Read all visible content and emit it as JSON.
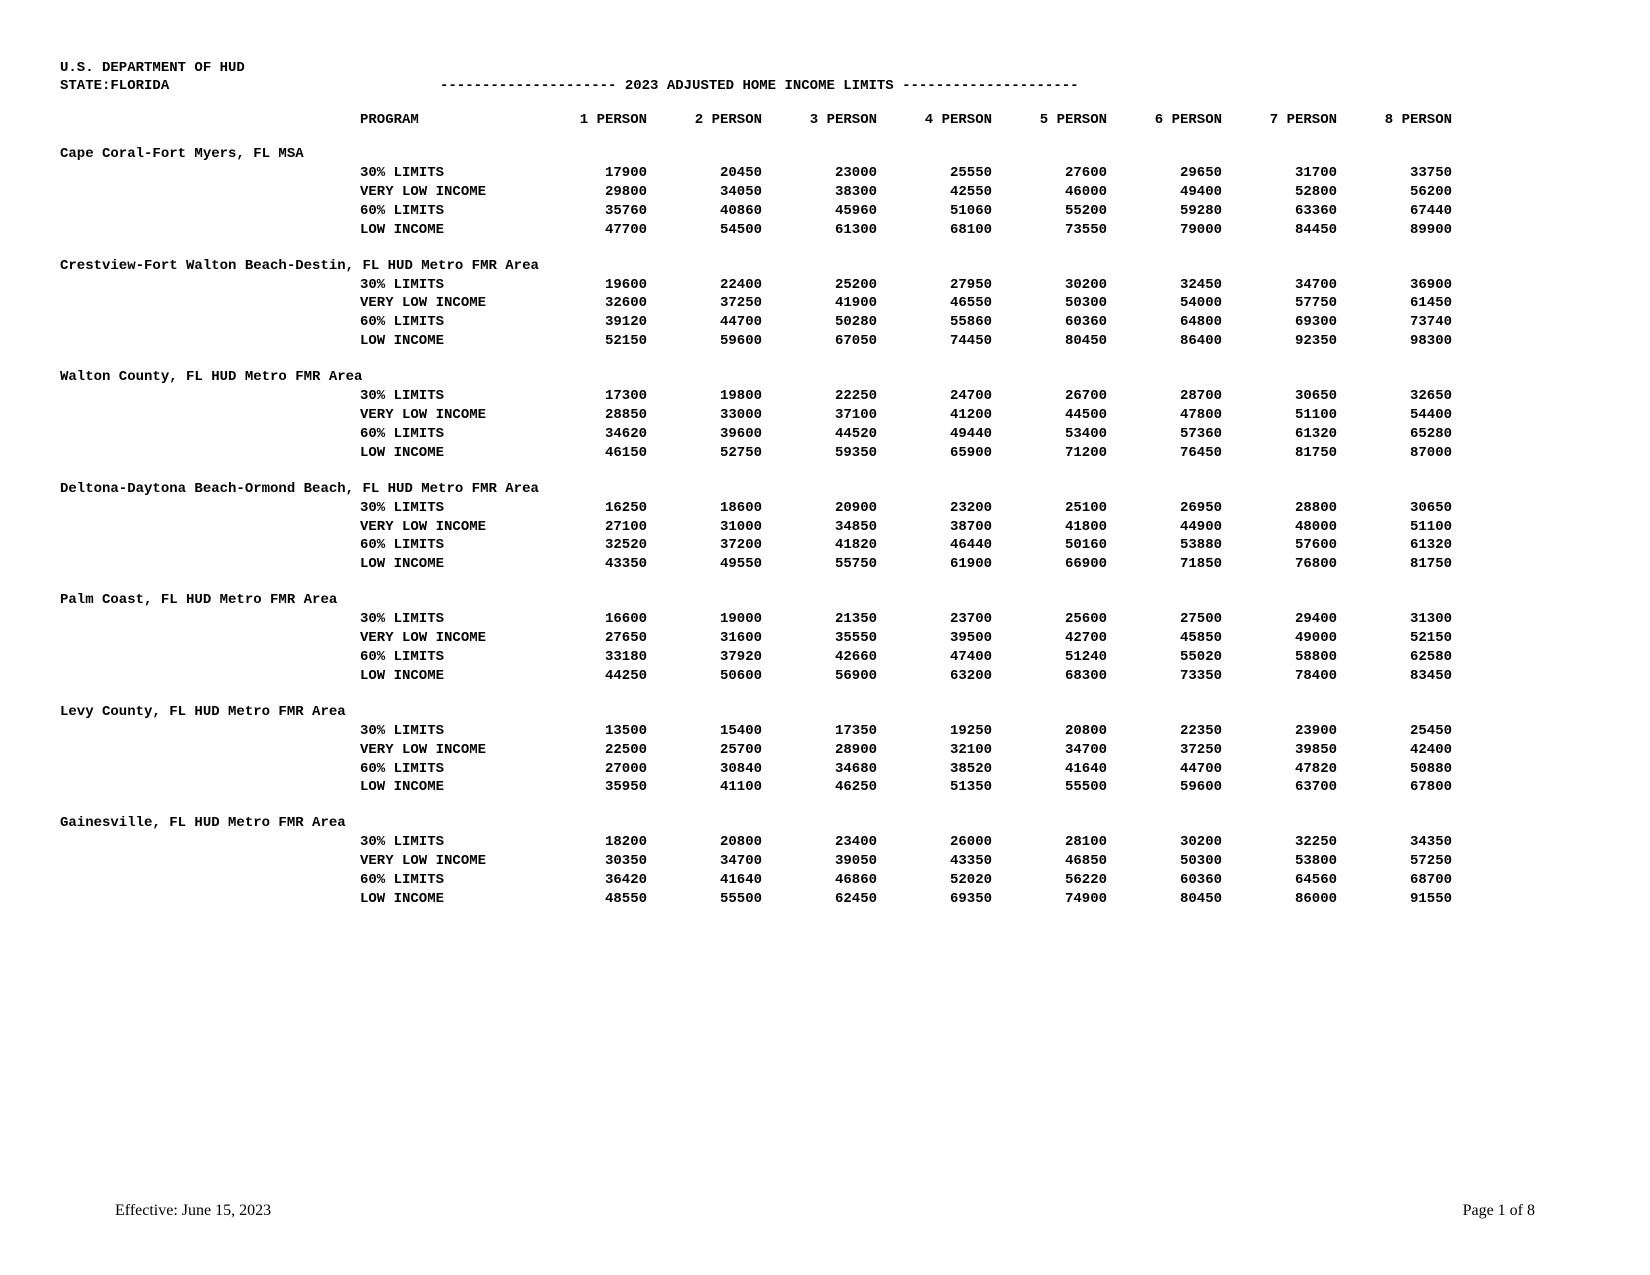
{
  "header": {
    "dept": "U.S. DEPARTMENT OF HUD",
    "state": "STATE:FLORIDA",
    "title_left_dash": "---------------------",
    "title_text": "  2023 ADJUSTED HOME INCOME LIMITS  ",
    "title_right_dash": "---------------------"
  },
  "columns": {
    "program": "PROGRAM",
    "p1": "1 PERSON",
    "p2": "2 PERSON",
    "p3": "3 PERSON",
    "p4": "4 PERSON",
    "p5": "5 PERSON",
    "p6": "6 PERSON",
    "p7": "7 PERSON",
    "p8": "8 PERSON"
  },
  "footer": {
    "effective": "Effective: June 15, 2023",
    "page": "Page 1 of 8"
  },
  "areas": [
    {
      "name": "Cape Coral-Fort Myers, FL MSA",
      "rows": [
        {
          "program": "30% LIMITS",
          "v": [
            "17900",
            "20450",
            "23000",
            "25550",
            "27600",
            "29650",
            "31700",
            "33750"
          ]
        },
        {
          "program": "VERY LOW INCOME",
          "v": [
            "29800",
            "34050",
            "38300",
            "42550",
            "46000",
            "49400",
            "52800",
            "56200"
          ]
        },
        {
          "program": "60% LIMITS",
          "v": [
            "35760",
            "40860",
            "45960",
            "51060",
            "55200",
            "59280",
            "63360",
            "67440"
          ]
        },
        {
          "program": "LOW INCOME",
          "v": [
            "47700",
            "54500",
            "61300",
            "68100",
            "73550",
            "79000",
            "84450",
            "89900"
          ]
        }
      ]
    },
    {
      "name": "Crestview-Fort Walton Beach-Destin, FL HUD Metro FMR Area",
      "rows": [
        {
          "program": "30% LIMITS",
          "v": [
            "19600",
            "22400",
            "25200",
            "27950",
            "30200",
            "32450",
            "34700",
            "36900"
          ]
        },
        {
          "program": "VERY LOW INCOME",
          "v": [
            "32600",
            "37250",
            "41900",
            "46550",
            "50300",
            "54000",
            "57750",
            "61450"
          ]
        },
        {
          "program": "60% LIMITS",
          "v": [
            "39120",
            "44700",
            "50280",
            "55860",
            "60360",
            "64800",
            "69300",
            "73740"
          ]
        },
        {
          "program": "LOW INCOME",
          "v": [
            "52150",
            "59600",
            "67050",
            "74450",
            "80450",
            "86400",
            "92350",
            "98300"
          ]
        }
      ]
    },
    {
      "name": "Walton County, FL HUD Metro FMR Area",
      "rows": [
        {
          "program": "30% LIMITS",
          "v": [
            "17300",
            "19800",
            "22250",
            "24700",
            "26700",
            "28700",
            "30650",
            "32650"
          ]
        },
        {
          "program": "VERY LOW INCOME",
          "v": [
            "28850",
            "33000",
            "37100",
            "41200",
            "44500",
            "47800",
            "51100",
            "54400"
          ]
        },
        {
          "program": "60% LIMITS",
          "v": [
            "34620",
            "39600",
            "44520",
            "49440",
            "53400",
            "57360",
            "61320",
            "65280"
          ]
        },
        {
          "program": "LOW INCOME",
          "v": [
            "46150",
            "52750",
            "59350",
            "65900",
            "71200",
            "76450",
            "81750",
            "87000"
          ]
        }
      ]
    },
    {
      "name": "Deltona-Daytona Beach-Ormond Beach, FL HUD Metro FMR Area",
      "rows": [
        {
          "program": "30% LIMITS",
          "v": [
            "16250",
            "18600",
            "20900",
            "23200",
            "25100",
            "26950",
            "28800",
            "30650"
          ]
        },
        {
          "program": "VERY LOW INCOME",
          "v": [
            "27100",
            "31000",
            "34850",
            "38700",
            "41800",
            "44900",
            "48000",
            "51100"
          ]
        },
        {
          "program": "60% LIMITS",
          "v": [
            "32520",
            "37200",
            "41820",
            "46440",
            "50160",
            "53880",
            "57600",
            "61320"
          ]
        },
        {
          "program": "LOW INCOME",
          "v": [
            "43350",
            "49550",
            "55750",
            "61900",
            "66900",
            "71850",
            "76800",
            "81750"
          ]
        }
      ]
    },
    {
      "name": "Palm Coast, FL HUD Metro FMR Area",
      "rows": [
        {
          "program": "30% LIMITS",
          "v": [
            "16600",
            "19000",
            "21350",
            "23700",
            "25600",
            "27500",
            "29400",
            "31300"
          ]
        },
        {
          "program": "VERY LOW INCOME",
          "v": [
            "27650",
            "31600",
            "35550",
            "39500",
            "42700",
            "45850",
            "49000",
            "52150"
          ]
        },
        {
          "program": "60% LIMITS",
          "v": [
            "33180",
            "37920",
            "42660",
            "47400",
            "51240",
            "55020",
            "58800",
            "62580"
          ]
        },
        {
          "program": "LOW INCOME",
          "v": [
            "44250",
            "50600",
            "56900",
            "63200",
            "68300",
            "73350",
            "78400",
            "83450"
          ]
        }
      ]
    },
    {
      "name": "Levy County, FL HUD Metro FMR Area",
      "rows": [
        {
          "program": "30% LIMITS",
          "v": [
            "13500",
            "15400",
            "17350",
            "19250",
            "20800",
            "22350",
            "23900",
            "25450"
          ]
        },
        {
          "program": "VERY LOW INCOME",
          "v": [
            "22500",
            "25700",
            "28900",
            "32100",
            "34700",
            "37250",
            "39850",
            "42400"
          ]
        },
        {
          "program": "60% LIMITS",
          "v": [
            "27000",
            "30840",
            "34680",
            "38520",
            "41640",
            "44700",
            "47820",
            "50880"
          ]
        },
        {
          "program": "LOW INCOME",
          "v": [
            "35950",
            "41100",
            "46250",
            "51350",
            "55500",
            "59600",
            "63700",
            "67800"
          ]
        }
      ]
    },
    {
      "name": "Gainesville, FL HUD Metro FMR Area",
      "rows": [
        {
          "program": "30% LIMITS",
          "v": [
            "18200",
            "20800",
            "23400",
            "26000",
            "28100",
            "30200",
            "32250",
            "34350"
          ]
        },
        {
          "program": "VERY LOW INCOME",
          "v": [
            "30350",
            "34700",
            "39050",
            "43350",
            "46850",
            "50300",
            "53800",
            "57250"
          ]
        },
        {
          "program": "60% LIMITS",
          "v": [
            "36420",
            "41640",
            "46860",
            "52020",
            "56220",
            "60360",
            "64560",
            "68700"
          ]
        },
        {
          "program": "LOW INCOME",
          "v": [
            "48550",
            "55500",
            "62450",
            "69350",
            "74900",
            "80450",
            "86000",
            "91550"
          ]
        }
      ]
    }
  ]
}
